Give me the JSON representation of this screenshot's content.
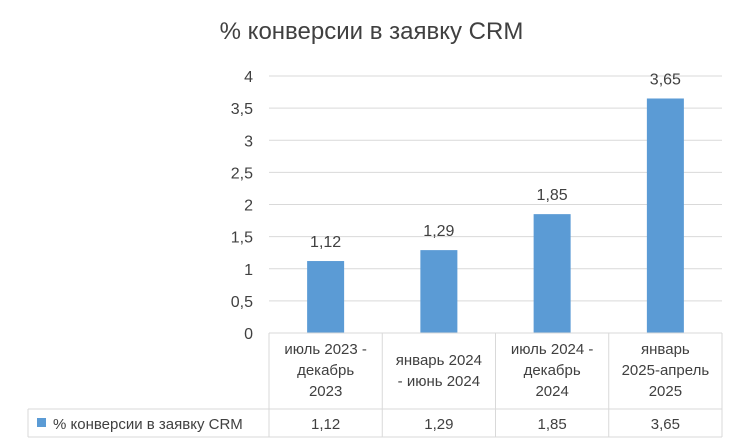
{
  "colors": {
    "bar": "#5B9BD5",
    "grid": "#D9D9D9",
    "text": "#404040"
  },
  "chart_data": {
    "type": "bar",
    "title": "% конверсии в заявку CRM",
    "categories": [
      [
        "июль 2023 -",
        "декабрь",
        "2023"
      ],
      [
        "январь 2024",
        "- июнь 2024"
      ],
      [
        "июль 2024 -",
        "декабрь",
        "2024"
      ],
      [
        "январь",
        "2025-апрель",
        "2025"
      ]
    ],
    "series": [
      {
        "name": "% конверсии в заявку CRM",
        "values": [
          1.12,
          1.29,
          1.85,
          3.65
        ],
        "value_labels": [
          "1,12",
          "1,29",
          "1,85",
          "3,65"
        ]
      }
    ],
    "ylim": [
      0,
      4
    ],
    "yticks": [
      0,
      0.5,
      1,
      1.5,
      2,
      2.5,
      3,
      3.5,
      4
    ],
    "ytick_labels": [
      "0",
      "0,5",
      "1",
      "1,5",
      "2",
      "2,5",
      "3",
      "3,5",
      "4"
    ],
    "grid": true,
    "legend": "data-table"
  }
}
